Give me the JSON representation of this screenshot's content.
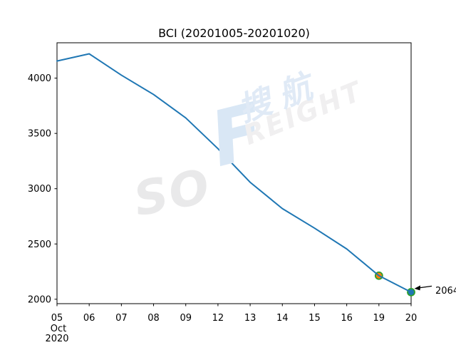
{
  "chart_data": {
    "type": "line",
    "title": "BCI (20201005-20201020)",
    "x_tick_labels": [
      "05",
      "06",
      "07",
      "08",
      "09",
      "12",
      "13",
      "14",
      "15",
      "16",
      "19",
      "20"
    ],
    "x_offset_label": [
      "Oct",
      "2020"
    ],
    "values": [
      4155,
      4220,
      4027,
      3852,
      3640,
      3362,
      3058,
      2820,
      2643,
      2455,
      2213,
      2064
    ],
    "yticks": [
      2000,
      2500,
      3000,
      3500,
      4000
    ],
    "ylim": [
      1960,
      4320
    ],
    "xlabel": "",
    "ylabel": "",
    "grid": false,
    "legend": null,
    "line_color": "#1f77b4",
    "axis_color": "#000000",
    "markers": [
      {
        "point_index": 10,
        "fill": "#ff7f0e",
        "edge": "#2ca02c"
      },
      {
        "point_index": 11,
        "fill": "#1f77b4",
        "edge": "#2ca02c"
      }
    ],
    "annotation": {
      "label": "2064",
      "point_index": 11
    }
  },
  "watermark": {
    "so": "SO",
    "f": "F",
    "reight": "REIGHT",
    "cn": "搜航"
  }
}
